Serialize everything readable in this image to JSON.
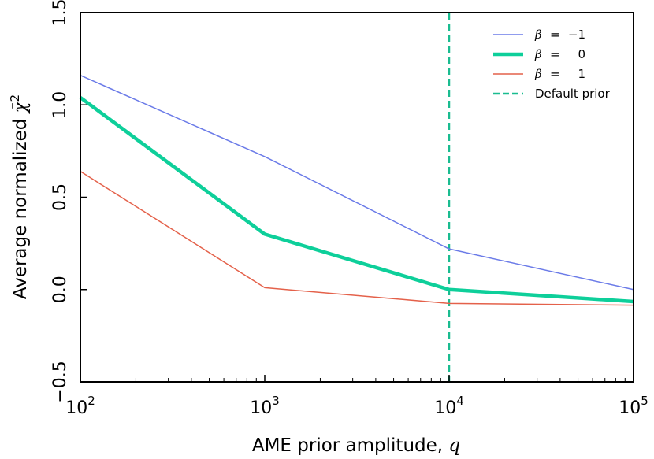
{
  "chart_data": {
    "type": "line",
    "xscale": "log",
    "xlim": [
      100,
      100000
    ],
    "ylim": [
      -0.5,
      1.5
    ],
    "x": [
      100,
      1000,
      10000,
      100000
    ],
    "xticks": [
      {
        "value": 100,
        "base": "10",
        "exp": "2"
      },
      {
        "value": 1000,
        "base": "10",
        "exp": "3"
      },
      {
        "value": 10000,
        "base": "10",
        "exp": "4"
      },
      {
        "value": 100000,
        "base": "10",
        "exp": "5"
      }
    ],
    "yticks": [
      {
        "value": -0.5,
        "label": "−0.5"
      },
      {
        "value": 0.0,
        "label": "0.0"
      },
      {
        "value": 0.5,
        "label": "0.5"
      },
      {
        "value": 1.0,
        "label": "1.0"
      },
      {
        "value": 1.5,
        "label": "1.5"
      }
    ],
    "xlabel_text": "AME prior amplitude,",
    "xlabel_var": "q",
    "ylabel_text": "Average normalized",
    "ylabel_symbol": "χ̄",
    "ylabel_exp": "2",
    "series": [
      {
        "name": "β = −1",
        "sym": "β",
        "eq": "=",
        "val": "−1",
        "color": "#6b7be8",
        "width": 1.5,
        "values": [
          1.16,
          0.72,
          0.22,
          0.0
        ]
      },
      {
        "name": "β = 0",
        "sym": "β",
        "eq": "=",
        "val": "0",
        "color": "#0ecf9a",
        "width": 4.5,
        "values": [
          1.04,
          0.3,
          0.0,
          -0.065
        ]
      },
      {
        "name": "β = 1",
        "sym": "β",
        "eq": "=",
        "val": "1",
        "color": "#e4614a",
        "width": 1.5,
        "values": [
          0.64,
          0.01,
          -0.075,
          -0.085
        ]
      }
    ],
    "vline": {
      "x": 10000,
      "label": "Default prior",
      "color": "#1abc90"
    },
    "legend_position": "top-right"
  }
}
